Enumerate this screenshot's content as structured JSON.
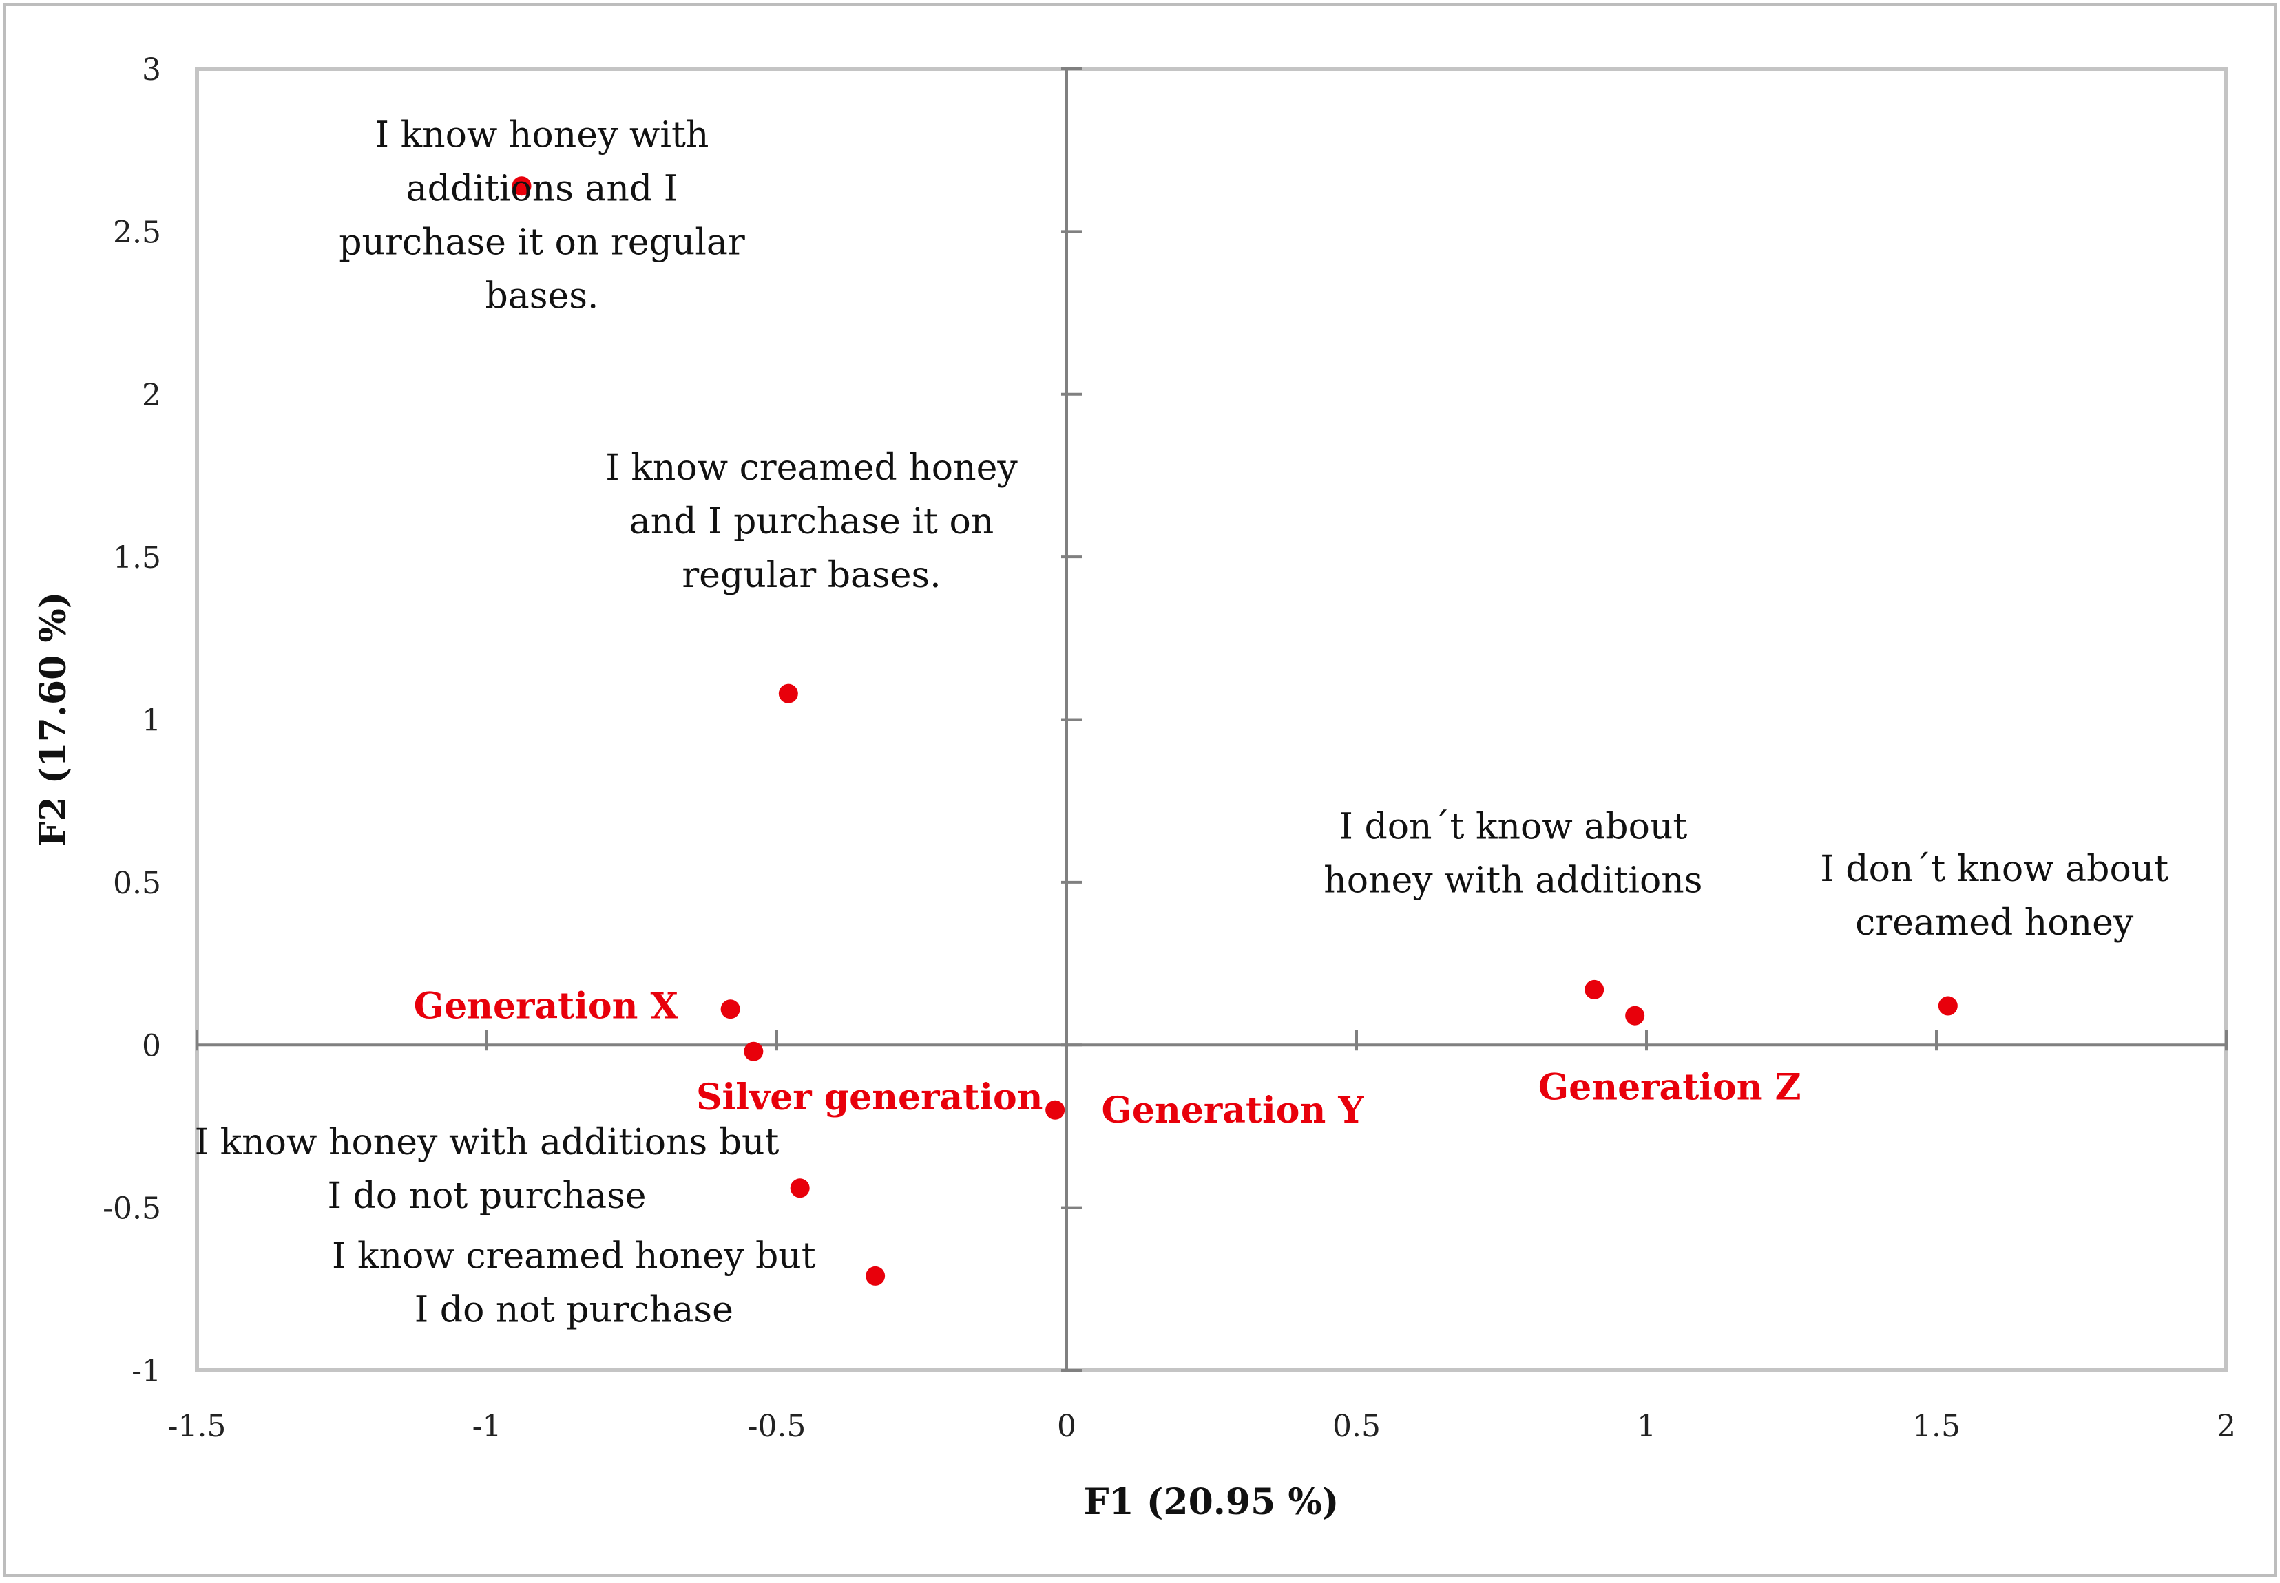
{
  "chart_data": {
    "type": "scatter",
    "title": "",
    "xlabel": "F1 (20.95 %)",
    "ylabel": "F2 (17.60 %)",
    "xlim": [
      -1.5,
      2
    ],
    "ylim": [
      -1,
      3
    ],
    "xticks": [
      -1.5,
      -1,
      -0.5,
      0,
      0.5,
      1,
      1.5,
      2
    ],
    "yticks": [
      -1,
      -0.5,
      0,
      0.5,
      1,
      1.5,
      2,
      2.5,
      3
    ],
    "xtick_labels": [
      "-1.5",
      "-1",
      "-0.5",
      "0",
      "0.5",
      "1",
      "1.5",
      "2"
    ],
    "ytick_labels": [
      "-1",
      "-0.5",
      "0",
      "0.5",
      "1",
      "1.5",
      "2",
      "2.5",
      "3"
    ],
    "grid": false,
    "marker_color": "#e8000b",
    "points": [
      {
        "x": -0.94,
        "y": 2.64,
        "label": [
          "I know honey with",
          "additions and I",
          "purchase it on regular",
          "bases."
        ],
        "label_style": "black",
        "dx": 0.035,
        "dy": -0.09,
        "anchor": "middle"
      },
      {
        "x": -0.48,
        "y": 1.08,
        "label": [
          "I know creamed honey",
          "and I purchase it  on",
          "regular bases."
        ],
        "label_style": "black",
        "dx": 0.04,
        "dy": 0.53,
        "anchor": "middle"
      },
      {
        "x": 0.91,
        "y": 0.17,
        "label": [
          "I don´t know  about",
          "honey with additions"
        ],
        "label_style": "black",
        "dx": -0.14,
        "dy": 0.42,
        "anchor": "middle"
      },
      {
        "x": 1.52,
        "y": 0.12,
        "label": [
          "I don´t know about",
          "creamed honey"
        ],
        "label_style": "black",
        "dx": 0.08,
        "dy": 0.34,
        "anchor": "middle"
      },
      {
        "x": -0.58,
        "y": 0.11,
        "label": [
          "Generation  X"
        ],
        "label_style": "red",
        "dx": -0.09,
        "dy": 0.01,
        "anchor": "end"
      },
      {
        "x": -0.54,
        "y": -0.02,
        "label": [
          "Silver generation"
        ],
        "label_style": "red",
        "dx": 0.2,
        "dy": -0.14,
        "anchor": "middle"
      },
      {
        "x": -0.02,
        "y": -0.2,
        "label": [
          "Generation Y"
        ],
        "label_style": "red",
        "dx": 0.08,
        "dy": 0.0,
        "anchor": "start"
      },
      {
        "x": 0.98,
        "y": 0.09,
        "label": [
          "Generation  Z"
        ],
        "label_style": "red",
        "dx": 0.06,
        "dy": -0.22,
        "anchor": "middle"
      },
      {
        "x": -0.46,
        "y": -0.44,
        "label": [
          "I know honey with additions but",
          "I do not purchase"
        ],
        "label_style": "black",
        "dx": -0.54,
        "dy": 0.06,
        "anchor": "middle"
      },
      {
        "x": -0.33,
        "y": -0.71,
        "label": [
          "I know creamed honey  but",
          "I do not purchase"
        ],
        "label_style": "black",
        "dx": -0.52,
        "dy": -0.02,
        "anchor": "middle"
      }
    ]
  }
}
